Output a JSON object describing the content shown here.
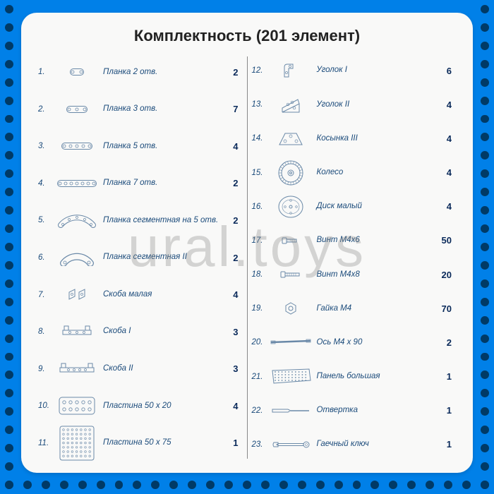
{
  "title": "Комплектность (201 элемент)",
  "watermark": "ural.toys",
  "left_column": [
    {
      "n": "1.",
      "label": "Планка 2 отв.",
      "qty": "2",
      "icon": "plank2"
    },
    {
      "n": "2.",
      "label": "Планка 3 отв.",
      "qty": "7",
      "icon": "plank3"
    },
    {
      "n": "3.",
      "label": "Планка 5 отв.",
      "qty": "4",
      "icon": "plank5"
    },
    {
      "n": "4.",
      "label": "Планка 7 отв.",
      "qty": "2",
      "icon": "plank7"
    },
    {
      "n": "5.",
      "label": "Планка сегментная на 5 отв.",
      "qty": "2",
      "icon": "seg5"
    },
    {
      "n": "6.",
      "label": "Планка сегментная II",
      "qty": "2",
      "icon": "seg2"
    },
    {
      "n": "7.",
      "label": "Скоба малая",
      "qty": "4",
      "icon": "bracket_small"
    },
    {
      "n": "8.",
      "label": "Скоба I",
      "qty": "3",
      "icon": "bracket1"
    },
    {
      "n": "9.",
      "label": "Скоба II",
      "qty": "3",
      "icon": "bracket2"
    },
    {
      "n": "10.",
      "label": "Пластина 50 х 20",
      "qty": "4",
      "icon": "plate5020"
    },
    {
      "n": "11.",
      "label": "Пластина 50 х 75",
      "qty": "1",
      "icon": "plate5075"
    }
  ],
  "right_column": [
    {
      "n": "12.",
      "label": "Уголок I",
      "qty": "6",
      "icon": "angle1"
    },
    {
      "n": "13.",
      "label": "Уголок II",
      "qty": "4",
      "icon": "angle2"
    },
    {
      "n": "14.",
      "label": "Косынка III",
      "qty": "4",
      "icon": "gusset3"
    },
    {
      "n": "15.",
      "label": "Колесо",
      "qty": "4",
      "icon": "wheel"
    },
    {
      "n": "16.",
      "label": "Диск малый",
      "qty": "4",
      "icon": "disc"
    },
    {
      "n": "17.",
      "label": "Винт М4х6",
      "qty": "50",
      "icon": "bolt6"
    },
    {
      "n": "18.",
      "label": "Винт М4х8",
      "qty": "20",
      "icon": "bolt8"
    },
    {
      "n": "19.",
      "label": "Гайка М4",
      "qty": "70",
      "icon": "nut"
    },
    {
      "n": "20.",
      "label": "Ось М4 х 90",
      "qty": "2",
      "icon": "axle"
    },
    {
      "n": "21.",
      "label": "Панель большая",
      "qty": "1",
      "icon": "panel"
    },
    {
      "n": "22.",
      "label": "Отвертка",
      "qty": "1",
      "icon": "screwdriver"
    },
    {
      "n": "23.",
      "label": "Гаечный ключ",
      "qty": "1",
      "icon": "wrench"
    }
  ],
  "styling": {
    "background_color": "#0080e8",
    "panel_color": "#f9f9f8",
    "text_color": "#1a4a7a",
    "qty_color": "#0a2a5a",
    "dot_color": "#003a66",
    "stroke": "#6a89a8",
    "title_fontsize": 22,
    "row_fontsize": 11.5,
    "qty_fontsize": 13
  }
}
